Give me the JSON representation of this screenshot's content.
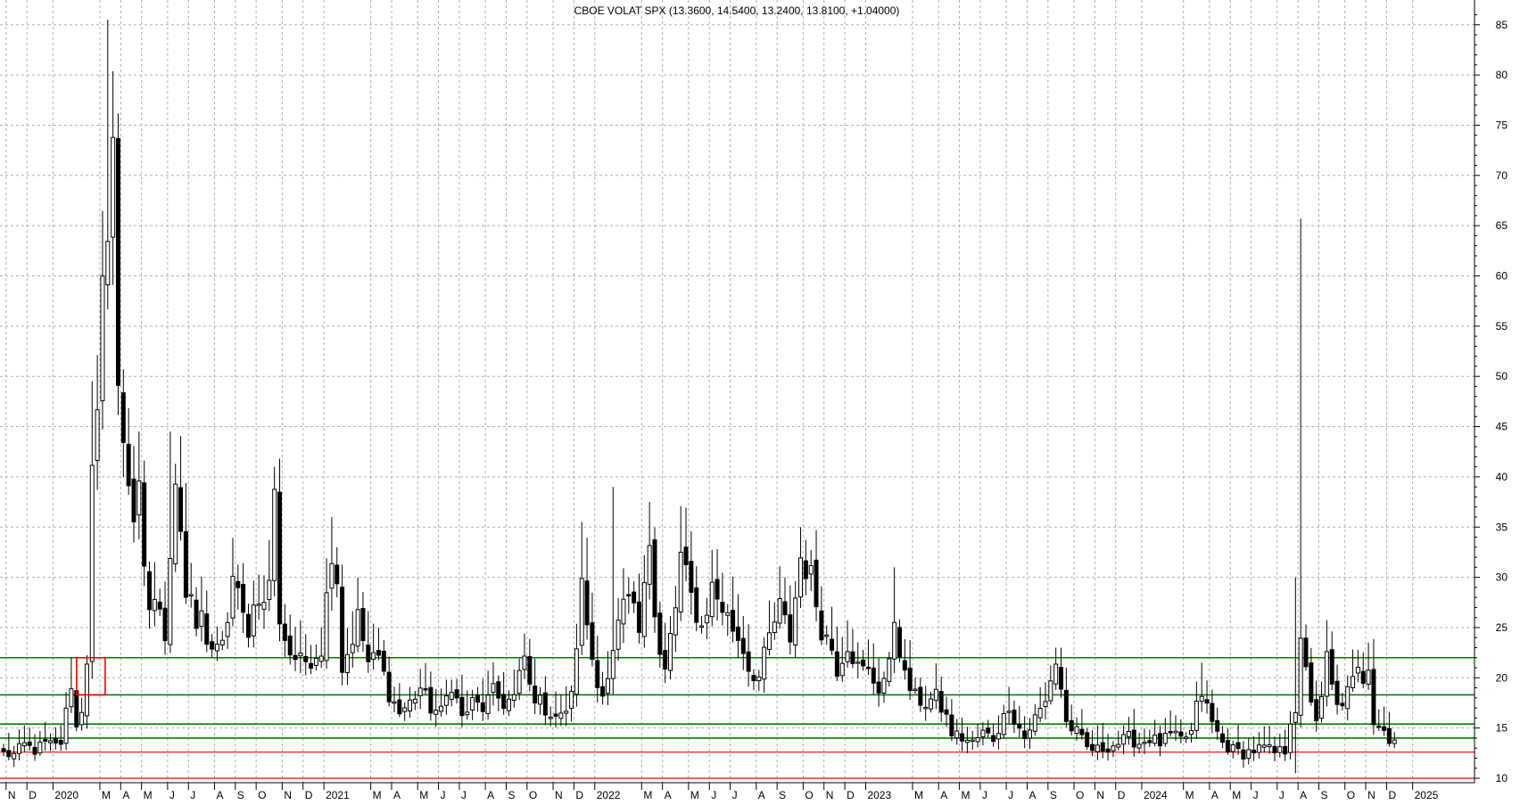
{
  "chart_data": {
    "type": "candlestick",
    "title": "CBOE VOLAT SPX (13.3600, 14.5400, 13.2400, 13.8100, +1.04000)",
    "ylim": [
      9.5,
      87
    ],
    "y_ticks": [
      10,
      15,
      20,
      25,
      30,
      35,
      40,
      45,
      50,
      55,
      60,
      65,
      70,
      75,
      80,
      85
    ],
    "x_range": [
      0,
      275
    ],
    "month_labels": [
      {
        "label": "N",
        "w": 1
      },
      {
        "label": "D",
        "w": 5
      },
      {
        "label": "2020",
        "w": 10
      },
      {
        "label": "M",
        "w": 19
      },
      {
        "label": "A",
        "w": 23
      },
      {
        "label": "M",
        "w": 27
      },
      {
        "label": "J",
        "w": 32
      },
      {
        "label": "J",
        "w": 36
      },
      {
        "label": "A",
        "w": 41
      },
      {
        "label": "S",
        "w": 45
      },
      {
        "label": "O",
        "w": 49
      },
      {
        "label": "N",
        "w": 54
      },
      {
        "label": "D",
        "w": 58
      },
      {
        "label": "2021",
        "w": 62
      },
      {
        "label": "M",
        "w": 71
      },
      {
        "label": "A",
        "w": 75
      },
      {
        "label": "M",
        "w": 80
      },
      {
        "label": "J",
        "w": 84
      },
      {
        "label": "J",
        "w": 88
      },
      {
        "label": "A",
        "w": 93
      },
      {
        "label": "S",
        "w": 97
      },
      {
        "label": "O",
        "w": 101
      },
      {
        "label": "N",
        "w": 106
      },
      {
        "label": "D",
        "w": 110
      },
      {
        "label": "2022",
        "w": 114
      },
      {
        "label": "M",
        "w": 123
      },
      {
        "label": "A",
        "w": 127
      },
      {
        "label": "M",
        "w": 132
      },
      {
        "label": "J",
        "w": 136
      },
      {
        "label": "J",
        "w": 140
      },
      {
        "label": "A",
        "w": 145
      },
      {
        "label": "S",
        "w": 149
      },
      {
        "label": "O",
        "w": 154
      },
      {
        "label": "N",
        "w": 158
      },
      {
        "label": "D",
        "w": 162
      },
      {
        "label": "2023",
        "w": 166
      },
      {
        "label": "M",
        "w": 175
      },
      {
        "label": "A",
        "w": 180
      },
      {
        "label": "M",
        "w": 184
      },
      {
        "label": "J",
        "w": 188
      },
      {
        "label": "J",
        "w": 193
      },
      {
        "label": "A",
        "w": 197
      },
      {
        "label": "S",
        "w": 201
      },
      {
        "label": "O",
        "w": 206
      },
      {
        "label": "N",
        "w": 210
      },
      {
        "label": "D",
        "w": 214
      },
      {
        "label": "2024",
        "w": 219
      },
      {
        "label": "M",
        "w": 227
      },
      {
        "label": "A",
        "w": 232
      },
      {
        "label": "M",
        "w": 236
      },
      {
        "label": "J",
        "w": 240
      },
      {
        "label": "J",
        "w": 245
      },
      {
        "label": "A",
        "w": 249
      },
      {
        "label": "S",
        "w": 253
      },
      {
        "label": "O",
        "w": 258
      },
      {
        "label": "N",
        "w": 262
      },
      {
        "label": "D",
        "w": 266
      },
      {
        "label": "2025",
        "w": 271
      }
    ],
    "horizontal_lines": [
      {
        "value": 22.0,
        "color": "#008000"
      },
      {
        "value": 18.3,
        "color": "#008000"
      },
      {
        "value": 15.4,
        "color": "#008000"
      },
      {
        "value": 14.0,
        "color": "#008000"
      },
      {
        "value": 12.6,
        "color": "#ff0000"
      },
      {
        "value": 10.0,
        "color": "#ff0000"
      }
    ],
    "annotation_box": {
      "x0": 14,
      "x1": 19.5,
      "y_low": 18.3,
      "y_high": 22.0,
      "color": "#ff0000"
    },
    "series_anchors": [
      [
        0,
        12.5
      ],
      [
        2,
        12.3
      ],
      [
        4,
        13.3
      ],
      [
        6,
        12.8
      ],
      [
        8,
        13.4
      ],
      [
        10,
        13.2
      ],
      [
        11,
        13.6
      ],
      [
        12,
        16.5
      ],
      [
        13,
        19.5
      ],
      [
        14,
        15.0
      ],
      [
        15,
        17.0
      ],
      [
        16,
        22.0
      ],
      [
        17,
        40.0
      ],
      [
        18,
        45.0
      ],
      [
        19,
        58.0
      ],
      [
        20,
        66.0
      ],
      [
        21,
        74.0
      ],
      [
        22,
        48.0
      ],
      [
        23,
        44.0
      ],
      [
        24,
        40.0
      ],
      [
        25,
        36.0
      ],
      [
        26,
        38.0
      ],
      [
        27,
        30.0
      ],
      [
        28,
        27.0
      ],
      [
        29,
        28.0
      ],
      [
        30,
        26.0
      ],
      [
        31,
        24.5
      ],
      [
        32,
        33.0
      ],
      [
        33,
        40.0
      ],
      [
        34,
        35.0
      ],
      [
        35,
        28.0
      ],
      [
        36,
        27.0
      ],
      [
        37,
        25.0
      ],
      [
        38,
        26.0
      ],
      [
        39,
        24.0
      ],
      [
        40,
        23.0
      ],
      [
        41,
        22.5
      ],
      [
        42,
        23.0
      ],
      [
        43,
        26.0
      ],
      [
        44,
        30.0
      ],
      [
        45,
        28.0
      ],
      [
        46,
        26.0
      ],
      [
        47,
        25.0
      ],
      [
        48,
        27.0
      ],
      [
        49,
        28.5
      ],
      [
        50,
        27.0
      ],
      [
        51,
        30.0
      ],
      [
        52,
        38.0
      ],
      [
        53,
        26.0
      ],
      [
        54,
        24.0
      ],
      [
        55,
        22.5
      ],
      [
        57,
        21.5
      ],
      [
        59,
        22.0
      ],
      [
        61,
        23.0
      ],
      [
        63,
        33.0
      ],
      [
        64,
        30.0
      ],
      [
        65,
        21.0
      ],
      [
        66,
        22.5
      ],
      [
        67,
        24.0
      ],
      [
        68,
        26.0
      ],
      [
        70,
        21.5
      ],
      [
        72,
        22.0
      ],
      [
        74,
        18.5
      ],
      [
        76,
        16.5
      ],
      [
        78,
        17.5
      ],
      [
        80,
        19.0
      ],
      [
        82,
        17.0
      ],
      [
        84,
        16.5
      ],
      [
        86,
        19.5
      ],
      [
        88,
        16.0
      ],
      [
        90,
        17.5
      ],
      [
        92,
        17.0
      ],
      [
        94,
        18.5
      ],
      [
        96,
        17.5
      ],
      [
        98,
        18.0
      ],
      [
        100,
        22.0
      ],
      [
        101,
        19.0
      ],
      [
        103,
        17.5
      ],
      [
        105,
        16.5
      ],
      [
        107,
        16.0
      ],
      [
        109,
        18.0
      ],
      [
        111,
        29.0
      ],
      [
        113,
        22.0
      ],
      [
        114,
        20.0
      ],
      [
        115,
        18.5
      ],
      [
        116,
        19.5
      ],
      [
        117,
        22.0
      ],
      [
        118,
        25.0
      ],
      [
        120,
        28.0
      ],
      [
        122,
        25.0
      ],
      [
        123,
        31.0
      ],
      [
        124,
        34.0
      ],
      [
        125,
        26.0
      ],
      [
        126,
        22.0
      ],
      [
        127,
        20.5
      ],
      [
        128,
        24.0
      ],
      [
        129,
        27.0
      ],
      [
        130,
        32.0
      ],
      [
        131,
        30.0
      ],
      [
        132,
        28.0
      ],
      [
        134,
        25.0
      ],
      [
        136,
        29.0
      ],
      [
        138,
        27.0
      ],
      [
        140,
        25.0
      ],
      [
        142,
        23.0
      ],
      [
        143,
        21.0
      ],
      [
        145,
        20.0
      ],
      [
        147,
        24.0
      ],
      [
        149,
        27.0
      ],
      [
        151,
        24.0
      ],
      [
        152,
        28.0
      ],
      [
        153,
        32.0
      ],
      [
        154,
        31.0
      ],
      [
        155,
        30.0
      ],
      [
        157,
        25.0
      ],
      [
        159,
        23.0
      ],
      [
        160,
        21.0
      ],
      [
        162,
        23.5
      ],
      [
        164,
        21.0
      ],
      [
        166,
        20.5
      ],
      [
        168,
        19.0
      ],
      [
        170,
        21.0
      ],
      [
        171,
        26.0
      ],
      [
        172,
        23.0
      ],
      [
        173,
        20.0
      ],
      [
        175,
        18.0
      ],
      [
        177,
        17.5
      ],
      [
        179,
        18.0
      ],
      [
        181,
        16.0
      ],
      [
        182,
        14.5
      ],
      [
        184,
        14.0
      ],
      [
        186,
        13.5
      ],
      [
        188,
        14.5
      ],
      [
        190,
        14.0
      ],
      [
        192,
        16.0
      ],
      [
        193,
        17.5
      ],
      [
        194,
        16.0
      ],
      [
        196,
        14.0
      ],
      [
        198,
        16.0
      ],
      [
        200,
        17.5
      ],
      [
        201,
        20.0
      ],
      [
        202,
        21.5
      ],
      [
        203,
        19.0
      ],
      [
        204,
        15.5
      ],
      [
        206,
        14.5
      ],
      [
        208,
        13.0
      ],
      [
        210,
        12.8
      ],
      [
        212,
        13.2
      ],
      [
        214,
        13.5
      ],
      [
        216,
        14.0
      ],
      [
        218,
        13.5
      ],
      [
        220,
        14.0
      ],
      [
        222,
        13.5
      ],
      [
        224,
        14.2
      ],
      [
        226,
        13.8
      ],
      [
        228,
        14.5
      ],
      [
        229,
        17.0
      ],
      [
        230,
        18.5
      ],
      [
        232,
        15.5
      ],
      [
        234,
        13.5
      ],
      [
        236,
        12.8
      ],
      [
        238,
        12.5
      ],
      [
        240,
        12.8
      ],
      [
        242,
        13.0
      ],
      [
        244,
        12.5
      ],
      [
        246,
        12.8
      ],
      [
        247,
        16.0
      ],
      [
        248,
        17.0
      ],
      [
        249,
        23.0
      ],
      [
        250,
        20.5
      ],
      [
        251,
        18.0
      ],
      [
        252,
        16.0
      ],
      [
        253,
        17.5
      ],
      [
        254,
        22.0
      ],
      [
        255,
        19.0
      ],
      [
        256,
        17.0
      ],
      [
        258,
        18.5
      ],
      [
        260,
        20.5
      ],
      [
        261,
        20.0
      ],
      [
        262,
        21.5
      ],
      [
        263,
        16.0
      ],
      [
        264,
        15.5
      ],
      [
        265,
        15.0
      ],
      [
        266,
        13.5
      ],
      [
        267,
        13.81
      ]
    ],
    "wick_events": [
      {
        "w": 20,
        "high": 85.5
      },
      {
        "w": 21,
        "high": 77.0
      },
      {
        "w": 249,
        "high": 65.7
      },
      {
        "w": 248,
        "high": 30.0
      },
      {
        "w": 17,
        "high": 49.5
      },
      {
        "w": 32,
        "high": 44.5
      },
      {
        "w": 52,
        "high": 41.0
      },
      {
        "w": 63,
        "high": 36.0
      },
      {
        "w": 111,
        "high": 35.5
      },
      {
        "w": 117,
        "high": 39.0
      },
      {
        "w": 124,
        "high": 37.5
      },
      {
        "w": 131,
        "high": 36.5
      },
      {
        "w": 153,
        "high": 35.0
      },
      {
        "w": 171,
        "high": 31.0
      },
      {
        "w": 202,
        "high": 23.0
      },
      {
        "w": 230,
        "high": 21.5
      },
      {
        "w": 254,
        "high": 23.5
      },
      {
        "w": 262,
        "high": 23.5
      },
      {
        "w": 13,
        "high": 22.0
      },
      {
        "w": 248,
        "low": 10.5
      }
    ]
  }
}
